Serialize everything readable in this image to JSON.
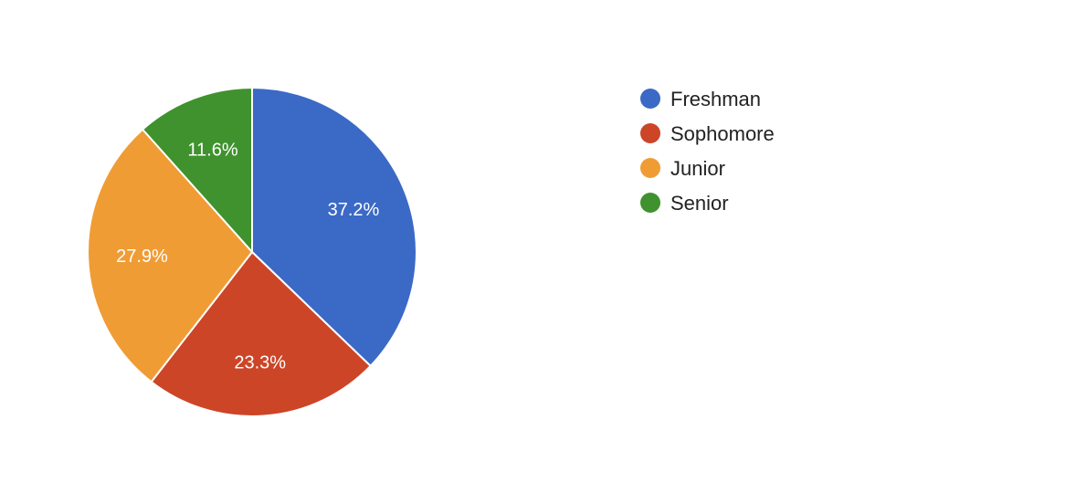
{
  "chart_data": {
    "type": "pie",
    "categories": [
      "Freshman",
      "Sophomore",
      "Junior",
      "Senior"
    ],
    "values": [
      37.2,
      23.3,
      27.9,
      11.6
    ],
    "value_labels": [
      "37.2%",
      "23.3%",
      "27.9%",
      "11.6%"
    ],
    "colors": [
      "#3b69c6",
      "#cc4527",
      "#f09c35",
      "#3f922e"
    ],
    "start_angle_deg": 90,
    "direction": "clockwise",
    "legend_position": "right"
  }
}
